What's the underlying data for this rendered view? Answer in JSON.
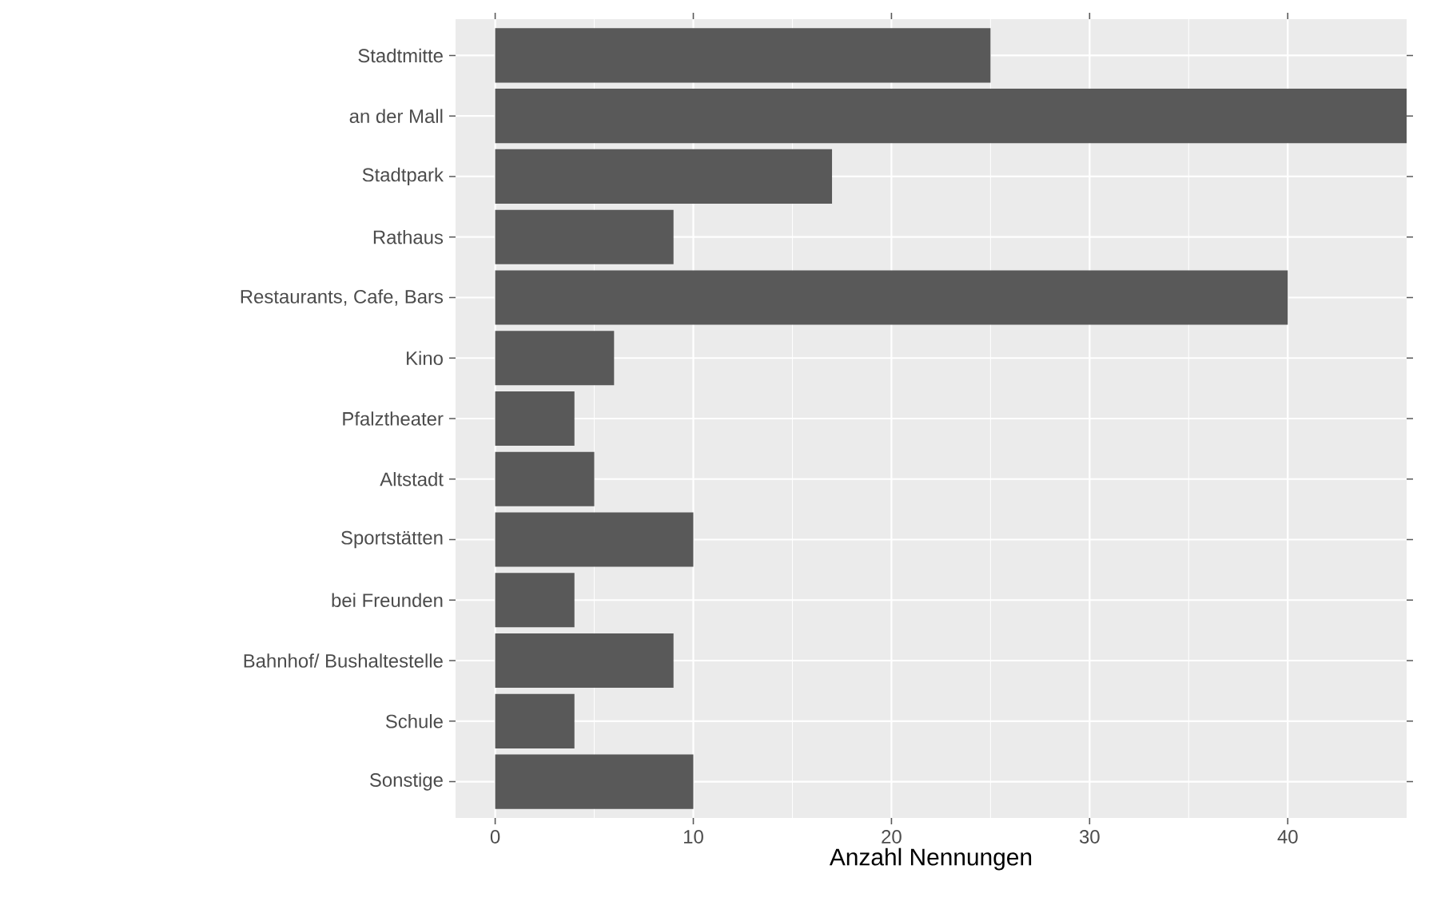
{
  "chart_data": {
    "type": "bar",
    "orientation": "horizontal",
    "xlabel": "Anzahl Nennungen",
    "categories": [
      "Stadtmitte",
      "an der Mall",
      "Stadtpark",
      "Rathaus",
      "Restaurants, Cafe, Bars",
      "Kino",
      "Pfalztheater",
      "Altstadt",
      "Sportstätten",
      "bei Freunden",
      "Bahnhof/ Bushaltestelle",
      "Schule",
      "Sonstige"
    ],
    "values": [
      25,
      46,
      17,
      9,
      40,
      6,
      4,
      5,
      10,
      4,
      9,
      4,
      10
    ],
    "color": "#595959",
    "xlim": [
      -2,
      46
    ],
    "xticks": [
      0,
      10,
      20,
      30,
      40
    ],
    "grid": true
  }
}
